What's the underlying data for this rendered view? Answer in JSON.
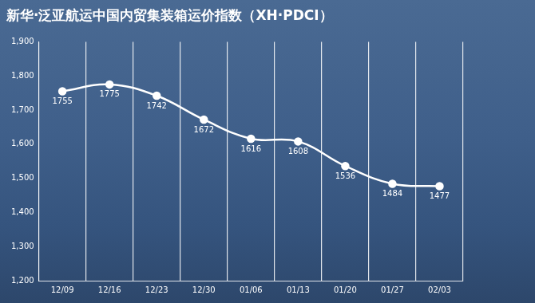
{
  "chart_data": {
    "type": "line",
    "title": "新华·泛亚航运中国内贸集装箱运价指数（XH·PDCI）",
    "categories": [
      "12/09",
      "12/16",
      "12/23",
      "12/30",
      "01/06",
      "01/13",
      "01/20",
      "01/27",
      "02/03"
    ],
    "values": [
      1755,
      1775,
      1742,
      1672,
      1616,
      1608,
      1536,
      1484,
      1477
    ],
    "color": "#ffffff",
    "ylim": [
      1200,
      1900
    ],
    "yticks": [
      {
        "value": 1200,
        "label": "1,200"
      },
      {
        "value": 1300,
        "label": "1,300"
      },
      {
        "value": 1400,
        "label": "1,400"
      },
      {
        "value": 1500,
        "label": "1,500"
      },
      {
        "value": 1600,
        "label": "1,600"
      },
      {
        "value": 1700,
        "label": "1,700"
      },
      {
        "value": 1800,
        "label": "1,800"
      },
      {
        "value": 1900,
        "label": "1,900"
      }
    ],
    "grid": true,
    "data_labels": true,
    "marker": "circle"
  }
}
